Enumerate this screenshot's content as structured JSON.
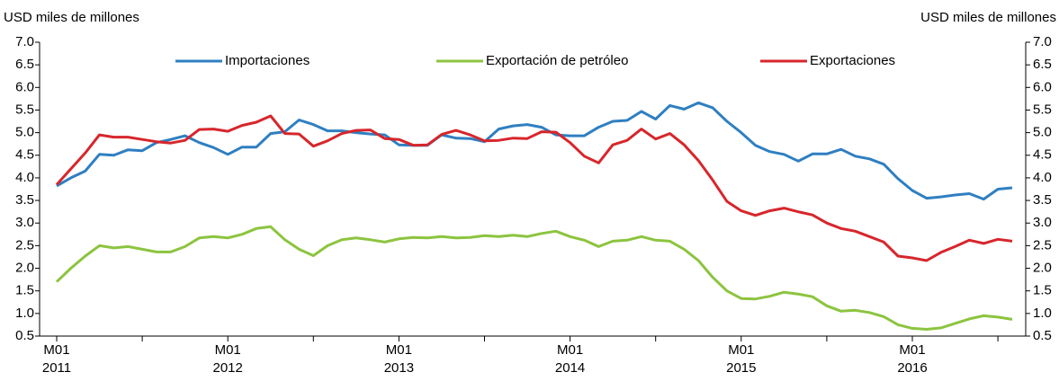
{
  "chart_data": {
    "type": "line",
    "ylabel": "USD miles de millones",
    "y2label": "USD miles de millones",
    "categories": [
      {
        "month": "M01",
        "year": "2011"
      },
      null,
      null,
      null,
      null,
      null,
      null,
      null,
      null,
      null,
      null,
      null,
      {
        "month": "M01",
        "year": "2012"
      },
      null,
      null,
      null,
      null,
      null,
      null,
      null,
      null,
      null,
      null,
      null,
      {
        "month": "M01",
        "year": "2013"
      },
      null,
      null,
      null,
      null,
      null,
      null,
      null,
      null,
      null,
      null,
      null,
      {
        "month": "M01",
        "year": "2014"
      },
      null,
      null,
      null,
      null,
      null,
      null,
      null,
      null,
      null,
      null,
      null,
      {
        "month": "M01",
        "year": "2015"
      },
      null,
      null,
      null,
      null,
      null,
      null,
      null,
      null,
      null,
      null,
      null,
      {
        "month": "M01",
        "year": "2016"
      },
      null,
      null,
      null,
      null,
      null,
      null,
      null
    ],
    "series": [
      {
        "name": "Importaciones",
        "color": "#2f7fc1",
        "values": [
          3.82,
          4.0,
          4.15,
          4.52,
          4.5,
          4.62,
          4.6,
          4.78,
          4.85,
          4.93,
          4.78,
          4.67,
          4.52,
          4.68,
          4.68,
          4.98,
          5.02,
          5.28,
          5.18,
          5.04,
          5.04,
          5.0,
          4.97,
          4.95,
          4.73,
          4.72,
          4.72,
          4.95,
          4.88,
          4.87,
          4.8,
          5.08,
          5.15,
          5.18,
          5.12,
          4.95,
          4.93,
          4.93,
          5.12,
          5.25,
          5.27,
          5.47,
          5.3,
          5.6,
          5.52,
          5.66,
          5.55,
          5.25,
          5.0,
          4.72,
          4.58,
          4.52,
          4.37,
          4.53,
          4.53,
          4.63,
          4.48,
          4.42,
          4.3,
          3.98,
          3.72,
          3.55,
          3.58,
          3.62,
          3.65,
          3.53,
          3.75,
          3.78
        ]
      },
      {
        "name": "Exportación de petróleo",
        "color": "#8cc43f",
        "values": [
          1.7,
          2.0,
          2.27,
          2.5,
          2.45,
          2.48,
          2.42,
          2.36,
          2.36,
          2.48,
          2.67,
          2.7,
          2.67,
          2.75,
          2.88,
          2.92,
          2.63,
          2.42,
          2.28,
          2.5,
          2.63,
          2.67,
          2.63,
          2.58,
          2.65,
          2.68,
          2.67,
          2.7,
          2.67,
          2.68,
          2.72,
          2.7,
          2.73,
          2.7,
          2.77,
          2.82,
          2.7,
          2.62,
          2.48,
          2.6,
          2.62,
          2.7,
          2.62,
          2.6,
          2.42,
          2.17,
          1.8,
          1.5,
          1.33,
          1.32,
          1.38,
          1.47,
          1.43,
          1.37,
          1.17,
          1.05,
          1.07,
          1.02,
          0.93,
          0.75,
          0.67,
          0.65,
          0.68,
          0.78,
          0.88,
          0.95,
          0.92,
          0.87
        ]
      },
      {
        "name": "Exportaciones",
        "color": "#d7262b",
        "values": [
          3.85,
          4.2,
          4.55,
          4.95,
          4.9,
          4.9,
          4.85,
          4.8,
          4.77,
          4.83,
          5.07,
          5.08,
          5.03,
          5.16,
          5.23,
          5.37,
          4.98,
          4.97,
          4.7,
          4.82,
          4.98,
          5.05,
          5.06,
          4.87,
          4.85,
          4.72,
          4.73,
          4.96,
          5.05,
          4.95,
          4.82,
          4.83,
          4.88,
          4.87,
          5.02,
          5.01,
          4.78,
          4.48,
          4.33,
          4.73,
          4.83,
          5.08,
          4.86,
          4.98,
          4.73,
          4.38,
          3.95,
          3.48,
          3.27,
          3.17,
          3.27,
          3.33,
          3.25,
          3.18,
          3.0,
          2.88,
          2.82,
          2.7,
          2.58,
          2.27,
          2.23,
          2.17,
          2.35,
          2.48,
          2.62,
          2.55,
          2.64,
          2.6
        ]
      }
    ],
    "ylim": [
      0.5,
      7
    ],
    "yticks": [
      {
        "value": 0.5,
        "label": "0.5"
      },
      {
        "value": 1,
        "label": "1.0"
      },
      {
        "value": 1.5,
        "label": "1.5"
      },
      {
        "value": 2,
        "label": "2.0"
      },
      {
        "value": 2.5,
        "label": "2.5"
      },
      {
        "value": 3,
        "label": "3.0"
      },
      {
        "value": 3.5,
        "label": "3.5"
      },
      {
        "value": 4,
        "label": "4.0"
      },
      {
        "value": 4.5,
        "label": "4.5"
      },
      {
        "value": 5,
        "label": "5.0"
      },
      {
        "value": 5.5,
        "label": "5.5"
      },
      {
        "value": 6,
        "label": "6.0"
      },
      {
        "value": 6.5,
        "label": "6.5"
      },
      {
        "value": 7,
        "label": "7.0"
      }
    ],
    "y2lim": [
      0.5,
      7
    ],
    "y2ticks": [
      {
        "value": 0.5,
        "label": "0.5"
      },
      {
        "value": 1,
        "label": "1.0"
      },
      {
        "value": 1.5,
        "label": "1.5"
      },
      {
        "value": 2,
        "label": "2.0"
      },
      {
        "value": 2.5,
        "label": "2.5"
      },
      {
        "value": 3,
        "label": "3.0"
      },
      {
        "value": 3.5,
        "label": "3.5"
      },
      {
        "value": 4,
        "label": "4.0"
      },
      {
        "value": 4.5,
        "label": "4.5"
      },
      {
        "value": 5,
        "label": "5.0"
      },
      {
        "value": 5.5,
        "label": "5.5"
      },
      {
        "value": 6,
        "label": "6.0"
      },
      {
        "value": 6.5,
        "label": "6.5"
      },
      {
        "value": 7,
        "label": "7.0"
      }
    ],
    "grid": false
  }
}
